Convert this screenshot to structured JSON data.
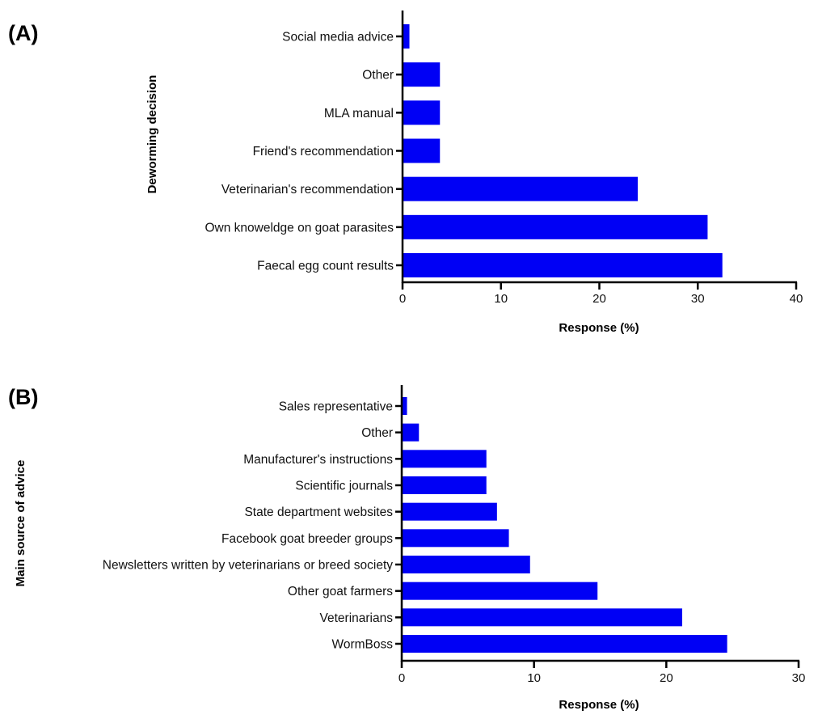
{
  "chart_data": [
    {
      "type": "bar",
      "orientation": "horizontal",
      "panel_label": "(A)",
      "title": "",
      "ylabel": "Deworming decision",
      "xlabel": "Response (%)",
      "xlim": [
        0,
        40
      ],
      "xticks": [
        0,
        10,
        20,
        30,
        40
      ],
      "grid": false,
      "bar_color": "#0000f5",
      "categories": [
        "Social media advice",
        "Other",
        "MLA manual",
        "Friend's recommendation",
        "Veterinarian's recommendation",
        "Own knoweldge on goat parasites",
        "Faecal egg count results"
      ],
      "values": [
        0.7,
        3.8,
        3.8,
        3.8,
        23.9,
        31.0,
        32.5
      ]
    },
    {
      "type": "bar",
      "orientation": "horizontal",
      "panel_label": "(B)",
      "title": "",
      "ylabel": "Main source of advice",
      "xlabel": "Response (%)",
      "xlim": [
        0,
        30
      ],
      "xticks": [
        0,
        10,
        20,
        30
      ],
      "grid": false,
      "bar_color": "#0000f5",
      "categories": [
        "Sales representative",
        "Other",
        "Manufacturer's instructions",
        "Scientific journals",
        "State department websites",
        "Facebook goat breeder groups",
        "Newsletters written by veterinarians or breed society",
        "Other goat farmers",
        "Veterinarians",
        "WormBoss"
      ],
      "values": [
        0.4,
        1.3,
        6.4,
        6.4,
        7.2,
        8.1,
        9.7,
        14.8,
        21.2,
        24.6
      ]
    }
  ]
}
